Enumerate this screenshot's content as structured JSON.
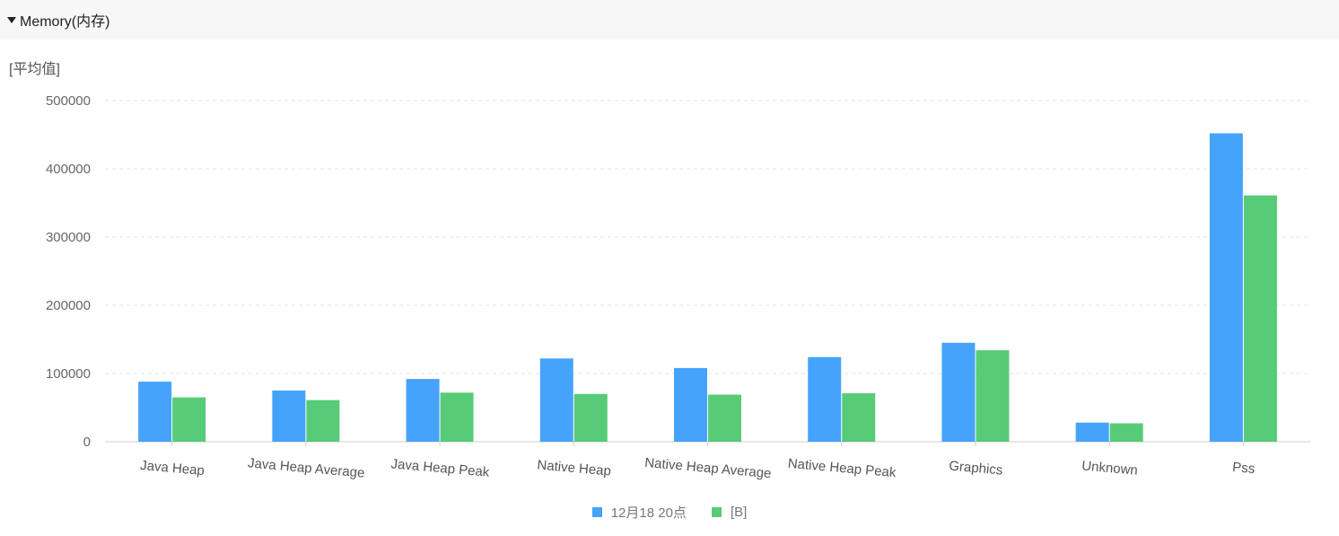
{
  "section": {
    "title": "Memory(内存)",
    "toggle_icon": "caret-down-icon"
  },
  "unit_label": "[平均值]",
  "colors": {
    "series_a": "#45a3fb",
    "series_b": "#57cb77",
    "grid": "#e6e6e6",
    "axis": "#cccccc"
  },
  "chart_data": {
    "type": "bar",
    "categories": [
      "Java Heap",
      "Java Heap Average",
      "Java Heap Peak",
      "Native Heap",
      "Native Heap Average",
      "Native Heap Peak",
      "Graphics",
      "Unknown",
      "Pss"
    ],
    "series": [
      {
        "name": "12月18 20点",
        "values": [
          88000,
          75000,
          92000,
          122000,
          108000,
          124000,
          145000,
          28000,
          452000
        ]
      },
      {
        "name": "[B]",
        "values": [
          65000,
          61000,
          72000,
          70000,
          69000,
          71000,
          134000,
          27000,
          361000
        ]
      }
    ],
    "yticks": [
      "0",
      "100000",
      "200000",
      "300000",
      "400000",
      "500000"
    ],
    "ylim": [
      0,
      500000
    ],
    "grid": true,
    "legend_position": "bottom",
    "ylabel": "[平均值]"
  }
}
